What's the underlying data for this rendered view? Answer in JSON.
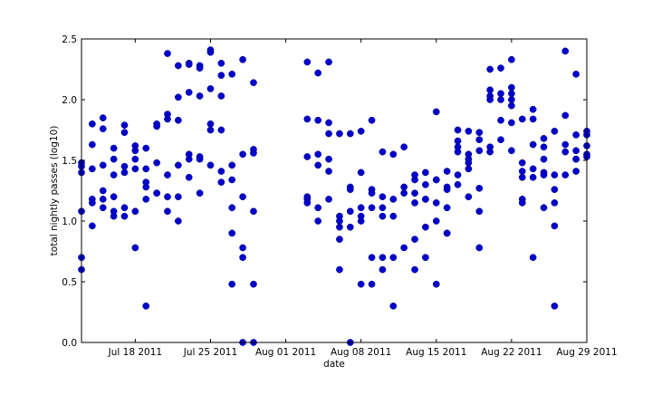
{
  "chart_data": {
    "type": "scatter",
    "xlabel": "date",
    "ylabel": "total nightly passes (log10)",
    "x_range": [
      "2011-07-13",
      "2011-08-29"
    ],
    "ylim": [
      0.0,
      2.5
    ],
    "x_ticks": [
      {
        "date": "2011-07-18",
        "label": "Jul 18 2011"
      },
      {
        "date": "2011-07-25",
        "label": "Jul 25 2011"
      },
      {
        "date": "2011-08-01",
        "label": "Aug 01 2011"
      },
      {
        "date": "2011-08-08",
        "label": "Aug 08 2011"
      },
      {
        "date": "2011-08-15",
        "label": "Aug 15 2011"
      },
      {
        "date": "2011-08-22",
        "label": "Aug 22 2011"
      },
      {
        "date": "2011-08-29",
        "label": "Aug 29 2011"
      }
    ],
    "y_ticks": [
      "0.0",
      "0.5",
      "1.0",
      "1.5",
      "2.0",
      "2.5"
    ],
    "grid": false,
    "marker_color": "#0000cc",
    "points": [
      [
        "2011-07-13",
        1.48
      ],
      [
        "2011-07-13",
        1.45
      ],
      [
        "2011-07-13",
        1.4
      ],
      [
        "2011-07-13",
        1.08
      ],
      [
        "2011-07-13",
        0.7
      ],
      [
        "2011-07-13",
        0.6
      ],
      [
        "2011-07-14",
        1.8
      ],
      [
        "2011-07-14",
        1.63
      ],
      [
        "2011-07-14",
        1.43
      ],
      [
        "2011-07-14",
        1.18
      ],
      [
        "2011-07-14",
        1.15
      ],
      [
        "2011-07-14",
        0.96
      ],
      [
        "2011-07-15",
        1.85
      ],
      [
        "2011-07-15",
        1.76
      ],
      [
        "2011-07-15",
        1.46
      ],
      [
        "2011-07-15",
        1.25
      ],
      [
        "2011-07-15",
        1.18
      ],
      [
        "2011-07-15",
        1.11
      ],
      [
        "2011-07-16",
        1.6
      ],
      [
        "2011-07-16",
        1.51
      ],
      [
        "2011-07-16",
        1.38
      ],
      [
        "2011-07-16",
        1.2
      ],
      [
        "2011-07-16",
        1.08
      ],
      [
        "2011-07-16",
        1.04
      ],
      [
        "2011-07-17",
        1.79
      ],
      [
        "2011-07-17",
        1.73
      ],
      [
        "2011-07-17",
        1.45
      ],
      [
        "2011-07-17",
        1.4
      ],
      [
        "2011-07-17",
        1.11
      ],
      [
        "2011-07-17",
        1.04
      ],
      [
        "2011-07-18",
        1.62
      ],
      [
        "2011-07-18",
        1.58
      ],
      [
        "2011-07-18",
        1.51
      ],
      [
        "2011-07-18",
        1.43
      ],
      [
        "2011-07-18",
        1.08
      ],
      [
        "2011-07-18",
        0.78
      ],
      [
        "2011-07-19",
        1.6
      ],
      [
        "2011-07-19",
        1.43
      ],
      [
        "2011-07-19",
        1.32
      ],
      [
        "2011-07-19",
        1.28
      ],
      [
        "2011-07-19",
        1.18
      ],
      [
        "2011-07-19",
        0.3
      ],
      [
        "2011-07-20",
        1.8
      ],
      [
        "2011-07-20",
        1.78
      ],
      [
        "2011-07-20",
        1.48
      ],
      [
        "2011-07-20",
        1.23
      ],
      [
        "2011-07-20",
        1.23
      ],
      [
        "2011-07-21",
        2.38
      ],
      [
        "2011-07-21",
        1.88
      ],
      [
        "2011-07-21",
        1.84
      ],
      [
        "2011-07-21",
        1.38
      ],
      [
        "2011-07-21",
        1.2
      ],
      [
        "2011-07-21",
        1.08
      ],
      [
        "2011-07-22",
        2.28
      ],
      [
        "2011-07-22",
        2.02
      ],
      [
        "2011-07-22",
        1.83
      ],
      [
        "2011-07-22",
        1.46
      ],
      [
        "2011-07-22",
        1.2
      ],
      [
        "2011-07-22",
        1.0
      ],
      [
        "2011-07-23",
        2.3
      ],
      [
        "2011-07-23",
        2.29
      ],
      [
        "2011-07-23",
        2.06
      ],
      [
        "2011-07-23",
        1.55
      ],
      [
        "2011-07-23",
        1.51
      ],
      [
        "2011-07-23",
        1.36
      ],
      [
        "2011-07-24",
        2.28
      ],
      [
        "2011-07-24",
        2.26
      ],
      [
        "2011-07-24",
        2.03
      ],
      [
        "2011-07-24",
        1.53
      ],
      [
        "2011-07-24",
        1.51
      ],
      [
        "2011-07-24",
        1.23
      ],
      [
        "2011-07-25",
        2.41
      ],
      [
        "2011-07-25",
        2.39
      ],
      [
        "2011-07-25",
        2.09
      ],
      [
        "2011-07-25",
        1.8
      ],
      [
        "2011-07-25",
        1.75
      ],
      [
        "2011-07-25",
        1.46
      ],
      [
        "2011-07-26",
        2.3
      ],
      [
        "2011-07-26",
        2.2
      ],
      [
        "2011-07-26",
        2.03
      ],
      [
        "2011-07-26",
        1.75
      ],
      [
        "2011-07-26",
        1.41
      ],
      [
        "2011-07-26",
        1.32
      ],
      [
        "2011-07-27",
        2.21
      ],
      [
        "2011-07-27",
        1.46
      ],
      [
        "2011-07-27",
        1.34
      ],
      [
        "2011-07-27",
        1.11
      ],
      [
        "2011-07-27",
        0.9
      ],
      [
        "2011-07-27",
        0.48
      ],
      [
        "2011-07-28",
        2.33
      ],
      [
        "2011-07-28",
        1.55
      ],
      [
        "2011-07-28",
        1.2
      ],
      [
        "2011-07-28",
        0.78
      ],
      [
        "2011-07-28",
        0.7
      ],
      [
        "2011-07-28",
        0.0
      ],
      [
        "2011-07-29",
        2.14
      ],
      [
        "2011-07-29",
        1.59
      ],
      [
        "2011-07-29",
        1.56
      ],
      [
        "2011-07-29",
        1.08
      ],
      [
        "2011-07-29",
        0.48
      ],
      [
        "2011-07-29",
        0.0
      ],
      [
        "2011-08-03",
        2.31
      ],
      [
        "2011-08-03",
        1.84
      ],
      [
        "2011-08-03",
        1.53
      ],
      [
        "2011-08-03",
        1.2
      ],
      [
        "2011-08-03",
        1.18
      ],
      [
        "2011-08-03",
        1.15
      ],
      [
        "2011-08-04",
        2.22
      ],
      [
        "2011-08-04",
        1.83
      ],
      [
        "2011-08-04",
        1.55
      ],
      [
        "2011-08-04",
        1.46
      ],
      [
        "2011-08-04",
        1.11
      ],
      [
        "2011-08-04",
        1.0
      ],
      [
        "2011-08-05",
        2.31
      ],
      [
        "2011-08-05",
        1.81
      ],
      [
        "2011-08-05",
        1.72
      ],
      [
        "2011-08-05",
        1.51
      ],
      [
        "2011-08-05",
        1.41
      ],
      [
        "2011-08-05",
        1.18
      ],
      [
        "2011-08-06",
        1.72
      ],
      [
        "2011-08-06",
        1.04
      ],
      [
        "2011-08-06",
        1.0
      ],
      [
        "2011-08-06",
        0.95
      ],
      [
        "2011-08-06",
        0.85
      ],
      [
        "2011-08-06",
        0.6
      ],
      [
        "2011-08-07",
        1.72
      ],
      [
        "2011-08-07",
        1.28
      ],
      [
        "2011-08-07",
        1.26
      ],
      [
        "2011-08-07",
        1.08
      ],
      [
        "2011-08-07",
        0.95
      ],
      [
        "2011-08-07",
        0.0
      ],
      [
        "2011-08-08",
        1.74
      ],
      [
        "2011-08-08",
        1.4
      ],
      [
        "2011-08-08",
        1.11
      ],
      [
        "2011-08-08",
        1.04
      ],
      [
        "2011-08-08",
        1.0
      ],
      [
        "2011-08-08",
        0.48
      ],
      [
        "2011-08-09",
        1.83
      ],
      [
        "2011-08-09",
        1.26
      ],
      [
        "2011-08-09",
        1.23
      ],
      [
        "2011-08-09",
        1.11
      ],
      [
        "2011-08-09",
        0.7
      ],
      [
        "2011-08-09",
        0.48
      ],
      [
        "2011-08-10",
        1.57
      ],
      [
        "2011-08-10",
        1.2
      ],
      [
        "2011-08-10",
        1.11
      ],
      [
        "2011-08-10",
        1.04
      ],
      [
        "2011-08-10",
        0.7
      ],
      [
        "2011-08-10",
        0.6
      ],
      [
        "2011-08-11",
        1.55
      ],
      [
        "2011-08-11",
        1.18
      ],
      [
        "2011-08-11",
        1.04
      ],
      [
        "2011-08-11",
        0.7
      ],
      [
        "2011-08-11",
        0.3
      ],
      [
        "2011-08-12",
        1.61
      ],
      [
        "2011-08-12",
        1.28
      ],
      [
        "2011-08-12",
        1.23
      ],
      [
        "2011-08-12",
        0.78
      ],
      [
        "2011-08-13",
        1.38
      ],
      [
        "2011-08-13",
        1.34
      ],
      [
        "2011-08-13",
        1.23
      ],
      [
        "2011-08-13",
        1.15
      ],
      [
        "2011-08-13",
        0.85
      ],
      [
        "2011-08-13",
        0.6
      ],
      [
        "2011-08-14",
        1.4
      ],
      [
        "2011-08-14",
        1.3
      ],
      [
        "2011-08-14",
        1.18
      ],
      [
        "2011-08-14",
        1.18
      ],
      [
        "2011-08-14",
        0.95
      ],
      [
        "2011-08-14",
        0.7
      ],
      [
        "2011-08-15",
        1.9
      ],
      [
        "2011-08-15",
        1.34
      ],
      [
        "2011-08-15",
        1.34
      ],
      [
        "2011-08-15",
        1.15
      ],
      [
        "2011-08-15",
        1.0
      ],
      [
        "2011-08-15",
        0.48
      ],
      [
        "2011-08-16",
        1.41
      ],
      [
        "2011-08-16",
        1.28
      ],
      [
        "2011-08-16",
        1.26
      ],
      [
        "2011-08-16",
        1.11
      ],
      [
        "2011-08-16",
        0.9
      ],
      [
        "2011-08-16",
        0.9
      ],
      [
        "2011-08-17",
        1.75
      ],
      [
        "2011-08-17",
        1.66
      ],
      [
        "2011-08-17",
        1.61
      ],
      [
        "2011-08-17",
        1.57
      ],
      [
        "2011-08-17",
        1.38
      ],
      [
        "2011-08-17",
        1.3
      ],
      [
        "2011-08-18",
        1.74
      ],
      [
        "2011-08-18",
        1.55
      ],
      [
        "2011-08-18",
        1.51
      ],
      [
        "2011-08-18",
        1.48
      ],
      [
        "2011-08-18",
        1.43
      ],
      [
        "2011-08-18",
        1.2
      ],
      [
        "2011-08-19",
        1.73
      ],
      [
        "2011-08-19",
        1.67
      ],
      [
        "2011-08-19",
        1.58
      ],
      [
        "2011-08-19",
        1.27
      ],
      [
        "2011-08-19",
        1.08
      ],
      [
        "2011-08-19",
        0.78
      ],
      [
        "2011-08-20",
        2.25
      ],
      [
        "2011-08-20",
        2.08
      ],
      [
        "2011-08-20",
        2.03
      ],
      [
        "2011-08-20",
        2.0
      ],
      [
        "2011-08-20",
        1.61
      ],
      [
        "2011-08-20",
        1.57
      ],
      [
        "2011-08-21",
        2.26
      ],
      [
        "2011-08-21",
        2.05
      ],
      [
        "2011-08-21",
        2.0
      ],
      [
        "2011-08-21",
        1.83
      ],
      [
        "2011-08-21",
        1.67
      ],
      [
        "2011-08-22",
        2.33
      ],
      [
        "2011-08-22",
        2.1
      ],
      [
        "2011-08-22",
        2.05
      ],
      [
        "2011-08-22",
        2.0
      ],
      [
        "2011-08-22",
        1.95
      ],
      [
        "2011-08-22",
        1.81
      ],
      [
        "2011-08-22",
        1.58
      ],
      [
        "2011-08-23",
        1.84
      ],
      [
        "2011-08-23",
        1.48
      ],
      [
        "2011-08-23",
        1.41
      ],
      [
        "2011-08-23",
        1.36
      ],
      [
        "2011-08-23",
        1.18
      ],
      [
        "2011-08-23",
        1.15
      ],
      [
        "2011-08-24",
        1.92
      ],
      [
        "2011-08-24",
        1.84
      ],
      [
        "2011-08-24",
        1.63
      ],
      [
        "2011-08-24",
        1.43
      ],
      [
        "2011-08-24",
        1.36
      ],
      [
        "2011-08-24",
        0.7
      ],
      [
        "2011-08-25",
        1.68
      ],
      [
        "2011-08-25",
        1.61
      ],
      [
        "2011-08-25",
        1.51
      ],
      [
        "2011-08-25",
        1.4
      ],
      [
        "2011-08-25",
        1.38
      ],
      [
        "2011-08-25",
        1.11
      ],
      [
        "2011-08-26",
        1.74
      ],
      [
        "2011-08-26",
        1.38
      ],
      [
        "2011-08-26",
        1.26
      ],
      [
        "2011-08-26",
        1.15
      ],
      [
        "2011-08-26",
        0.96
      ],
      [
        "2011-08-26",
        0.3
      ],
      [
        "2011-08-27",
        2.4
      ],
      [
        "2011-08-27",
        1.87
      ],
      [
        "2011-08-27",
        1.63
      ],
      [
        "2011-08-27",
        1.57
      ],
      [
        "2011-08-27",
        1.38
      ],
      [
        "2011-08-28",
        2.21
      ],
      [
        "2011-08-28",
        1.71
      ],
      [
        "2011-08-28",
        1.58
      ],
      [
        "2011-08-28",
        1.51
      ],
      [
        "2011-08-28",
        1.51
      ],
      [
        "2011-08-28",
        1.41
      ],
      [
        "2011-08-29",
        1.74
      ],
      [
        "2011-08-29",
        1.71
      ],
      [
        "2011-08-29",
        1.62
      ],
      [
        "2011-08-29",
        1.55
      ],
      [
        "2011-08-29",
        1.53
      ]
    ]
  }
}
